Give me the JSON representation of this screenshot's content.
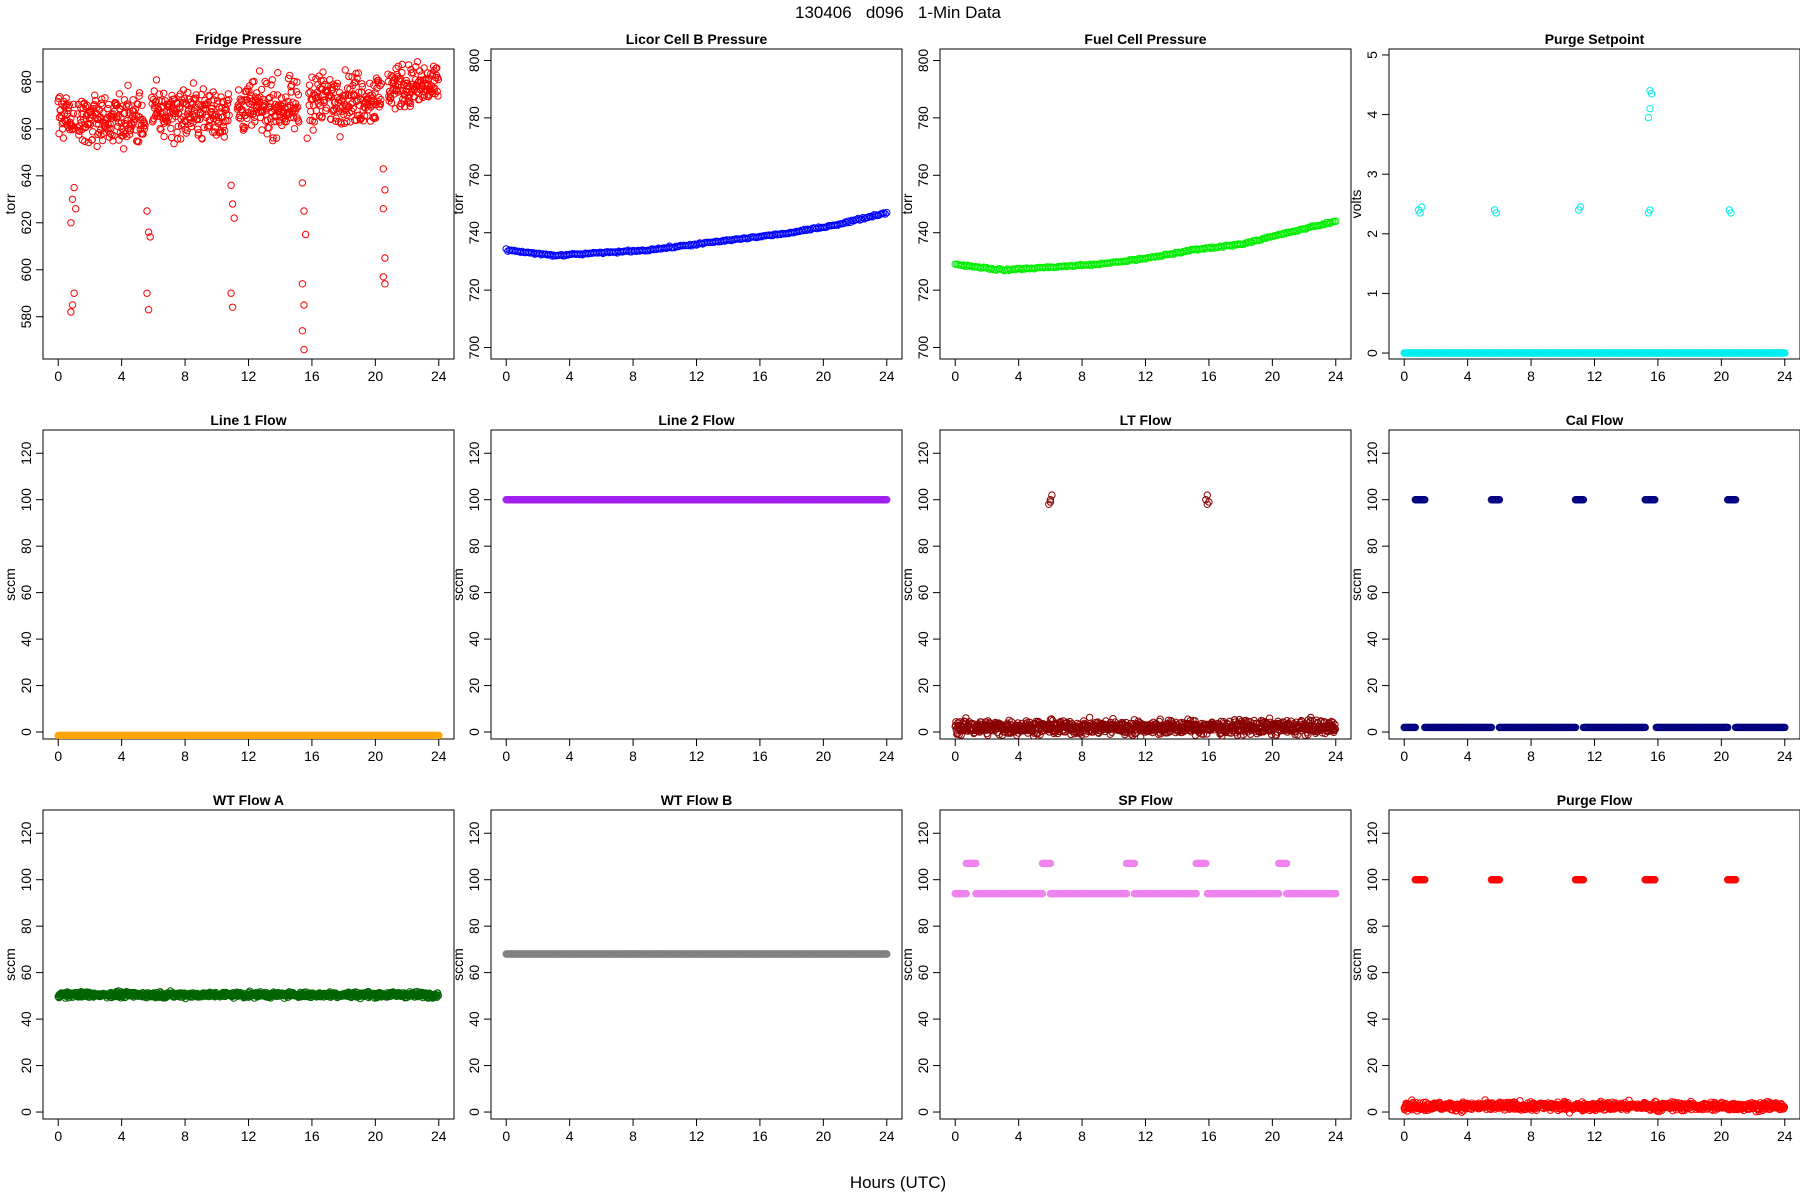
{
  "figure": {
    "title": "130406   d096   1-Min Data",
    "xlabel": "Hours (UTC)"
  },
  "chart_data": [
    {
      "type": "scatter",
      "title": "Fridge Pressure",
      "ylabel": "torr",
      "color": "#ff0000",
      "marker": "open-circle",
      "xlim": [
        0,
        24
      ],
      "ylim": [
        562,
        694
      ],
      "xticks": [
        0,
        4,
        8,
        12,
        16,
        20,
        24
      ],
      "yticks": [
        580,
        600,
        620,
        640,
        660,
        680
      ],
      "series": [
        {
          "kind": "band",
          "segments": [
            [
              0,
              1,
              666,
              8
            ],
            [
              1.2,
              5.5,
              664,
              9
            ],
            [
              5.9,
              10.8,
              667,
              9
            ],
            [
              11.3,
              15.2,
              669,
              9
            ],
            [
              15.8,
              20.4,
              673,
              9
            ],
            [
              20.8,
              24,
              678,
              8
            ]
          ]
        },
        {
          "kind": "clusters",
          "points": [
            [
              0.8,
              620
            ],
            [
              0.9,
              630
            ],
            [
              1.0,
              635
            ],
            [
              1.1,
              626
            ],
            [
              0.9,
              585
            ],
            [
              1.0,
              590
            ],
            [
              0.8,
              582
            ],
            [
              5.6,
              625
            ],
            [
              5.7,
              616
            ],
            [
              5.8,
              614
            ],
            [
              5.6,
              590
            ],
            [
              5.7,
              583
            ],
            [
              10.9,
              636
            ],
            [
              11.0,
              628
            ],
            [
              11.1,
              622
            ],
            [
              10.9,
              590
            ],
            [
              11.0,
              584
            ],
            [
              15.4,
              637
            ],
            [
              15.5,
              625
            ],
            [
              15.6,
              615
            ],
            [
              15.4,
              594
            ],
            [
              15.5,
              585
            ],
            [
              15.4,
              574
            ],
            [
              15.5,
              566
            ],
            [
              15.7,
              656
            ],
            [
              20.5,
              643
            ],
            [
              20.6,
              634
            ],
            [
              20.5,
              626
            ],
            [
              20.6,
              605
            ],
            [
              20.5,
              597
            ],
            [
              20.6,
              594
            ]
          ]
        }
      ]
    },
    {
      "type": "scatter",
      "title": "Licor Cell B Pressure",
      "ylabel": "torr",
      "color": "#0000ff",
      "marker": "open-circle",
      "xlim": [
        0,
        24
      ],
      "ylim": [
        696,
        804
      ],
      "xticks": [
        0,
        4,
        8,
        12,
        16,
        20,
        24
      ],
      "yticks": [
        700,
        720,
        740,
        760,
        780,
        800
      ],
      "series": [
        {
          "kind": "curve",
          "x": [
            0,
            3,
            6,
            9,
            12,
            15,
            18,
            21,
            24
          ],
          "y": [
            734,
            732,
            733,
            734,
            736,
            738,
            740,
            743,
            747
          ]
        }
      ]
    },
    {
      "type": "scatter",
      "title": "Fuel Cell Pressure",
      "ylabel": "torr",
      "color": "#00ee00",
      "marker": "open-circle",
      "xlim": [
        0,
        24
      ],
      "ylim": [
        696,
        804
      ],
      "xticks": [
        0,
        4,
        8,
        12,
        16,
        20,
        24
      ],
      "yticks": [
        700,
        720,
        740,
        760,
        780,
        800
      ],
      "series": [
        {
          "kind": "curve",
          "x": [
            0,
            3,
            6,
            9,
            12,
            15,
            18,
            21,
            24
          ],
          "y": [
            729,
            727,
            728,
            729,
            731,
            734,
            736,
            740,
            744
          ]
        }
      ]
    },
    {
      "type": "scatter",
      "title": "Purge Setpoint",
      "ylabel": "volts",
      "color": "#00eeee",
      "marker": "open-circle",
      "xlim": [
        0,
        24
      ],
      "ylim": [
        -0.1,
        5.1
      ],
      "xticks": [
        0,
        4,
        8,
        12,
        16,
        20,
        24
      ],
      "yticks": [
        0,
        1,
        2,
        3,
        4,
        5
      ],
      "series": [
        {
          "kind": "line",
          "segments": [
            [
              0,
              24,
              0
            ]
          ]
        },
        {
          "kind": "clusters",
          "points": [
            [
              0.9,
              2.4
            ],
            [
              1.0,
              2.35
            ],
            [
              1.1,
              2.45
            ],
            [
              5.7,
              2.4
            ],
            [
              5.8,
              2.35
            ],
            [
              11.0,
              2.4
            ],
            [
              11.1,
              2.45
            ],
            [
              15.4,
              2.35
            ],
            [
              15.5,
              2.4
            ],
            [
              15.4,
              3.95
            ],
            [
              15.5,
              4.1
            ],
            [
              15.6,
              4.35
            ],
            [
              15.5,
              4.4
            ],
            [
              20.5,
              2.4
            ],
            [
              20.6,
              2.35
            ]
          ]
        }
      ]
    },
    {
      "type": "scatter",
      "title": "Line 1 Flow",
      "ylabel": "sccm",
      "color": "#ffa500",
      "marker": "open-circle",
      "xlim": [
        0,
        24
      ],
      "ylim": [
        -3,
        130
      ],
      "xticks": [
        0,
        4,
        8,
        12,
        16,
        20,
        24
      ],
      "yticks": [
        0,
        20,
        40,
        60,
        80,
        100,
        120
      ],
      "series": [
        {
          "kind": "line",
          "segments": [
            [
              0,
              24,
              -1.5
            ]
          ]
        }
      ]
    },
    {
      "type": "scatter",
      "title": "Line 2 Flow",
      "ylabel": "sccm",
      "color": "#a020f0",
      "marker": "open-circle",
      "xlim": [
        0,
        24
      ],
      "ylim": [
        -3,
        130
      ],
      "xticks": [
        0,
        4,
        8,
        12,
        16,
        20,
        24
      ],
      "yticks": [
        0,
        20,
        40,
        60,
        80,
        100,
        120
      ],
      "series": [
        {
          "kind": "line",
          "segments": [
            [
              0,
              24,
              100
            ]
          ]
        }
      ]
    },
    {
      "type": "scatter",
      "title": "LT Flow",
      "ylabel": "sccm",
      "color": "#8b0000",
      "marker": "open-circle",
      "xlim": [
        0,
        24
      ],
      "ylim": [
        -3,
        130
      ],
      "xticks": [
        0,
        4,
        8,
        12,
        16,
        20,
        24
      ],
      "yticks": [
        0,
        20,
        40,
        60,
        80,
        100,
        120
      ],
      "series": [
        {
          "kind": "band",
          "segments": [
            [
              0,
              24,
              2,
              2.5
            ]
          ]
        },
        {
          "kind": "clusters",
          "points": [
            [
              5.9,
              98
            ],
            [
              6.0,
              100
            ],
            [
              6.1,
              102
            ],
            [
              6.0,
              99
            ],
            [
              15.8,
              100
            ],
            [
              15.9,
              102
            ],
            [
              16.0,
              99
            ],
            [
              15.9,
              98
            ]
          ]
        }
      ]
    },
    {
      "type": "scatter",
      "title": "Cal Flow",
      "ylabel": "sccm",
      "color": "#000080",
      "marker": "open-circle",
      "xlim": [
        0,
        24
      ],
      "ylim": [
        -3,
        130
      ],
      "xticks": [
        0,
        4,
        8,
        12,
        16,
        20,
        24
      ],
      "yticks": [
        0,
        20,
        40,
        60,
        80,
        100,
        120
      ],
      "series": [
        {
          "kind": "line",
          "segments": [
            [
              0,
              0.7,
              2
            ],
            [
              1.3,
              5.5,
              2
            ],
            [
              6.0,
              10.8,
              2
            ],
            [
              11.3,
              15.2,
              2
            ],
            [
              15.9,
              20.4,
              2
            ],
            [
              20.9,
              24,
              2
            ]
          ]
        },
        {
          "kind": "line",
          "segments": [
            [
              0.7,
              1.3,
              100
            ],
            [
              5.5,
              6.0,
              100
            ],
            [
              10.8,
              11.3,
              100
            ],
            [
              15.2,
              15.8,
              100
            ],
            [
              20.4,
              20.9,
              100
            ]
          ]
        }
      ]
    },
    {
      "type": "scatter",
      "title": "WT Flow A",
      "ylabel": "sccm",
      "color": "#006400",
      "marker": "open-circle",
      "xlim": [
        0,
        24
      ],
      "ylim": [
        -3,
        130
      ],
      "xticks": [
        0,
        4,
        8,
        12,
        16,
        20,
        24
      ],
      "yticks": [
        0,
        20,
        40,
        60,
        80,
        100,
        120
      ],
      "series": [
        {
          "kind": "band",
          "segments": [
            [
              0,
              24,
              50.5,
              1
            ]
          ]
        }
      ]
    },
    {
      "type": "scatter",
      "title": "WT Flow B",
      "ylabel": "sccm",
      "color": "#808080",
      "marker": "open-circle",
      "xlim": [
        0,
        24
      ],
      "ylim": [
        -3,
        130
      ],
      "xticks": [
        0,
        4,
        8,
        12,
        16,
        20,
        24
      ],
      "yticks": [
        0,
        20,
        40,
        60,
        80,
        100,
        120
      ],
      "series": [
        {
          "kind": "line",
          "segments": [
            [
              0,
              24,
              68
            ]
          ]
        }
      ]
    },
    {
      "type": "scatter",
      "title": "SP Flow",
      "ylabel": "sccm",
      "color": "#ee82ee",
      "marker": "open-circle",
      "xlim": [
        0,
        24
      ],
      "ylim": [
        -3,
        130
      ],
      "xticks": [
        0,
        4,
        8,
        12,
        16,
        20,
        24
      ],
      "yticks": [
        0,
        20,
        40,
        60,
        80,
        100,
        120
      ],
      "series": [
        {
          "kind": "line",
          "segments": [
            [
              0,
              0.7,
              94
            ],
            [
              1.3,
              5.5,
              94
            ],
            [
              6.0,
              10.8,
              94
            ],
            [
              11.3,
              15.2,
              94
            ],
            [
              15.9,
              20.4,
              94
            ],
            [
              20.9,
              24,
              94
            ]
          ]
        },
        {
          "kind": "line",
          "segments": [
            [
              0.7,
              1.3,
              107
            ],
            [
              5.5,
              6.0,
              107
            ],
            [
              10.8,
              11.3,
              107
            ],
            [
              15.2,
              15.8,
              107
            ],
            [
              20.4,
              20.9,
              107
            ]
          ]
        }
      ]
    },
    {
      "type": "scatter",
      "title": "Purge Flow",
      "ylabel": "sccm",
      "color": "#ff0000",
      "marker": "open-circle",
      "xlim": [
        0,
        24
      ],
      "ylim": [
        -3,
        130
      ],
      "xticks": [
        0,
        4,
        8,
        12,
        16,
        20,
        24
      ],
      "yticks": [
        0,
        20,
        40,
        60,
        80,
        100,
        120
      ],
      "series": [
        {
          "kind": "band",
          "segments": [
            [
              0,
              24,
              2.5,
              1.5
            ]
          ]
        },
        {
          "kind": "line",
          "segments": [
            [
              0.7,
              1.3,
              100
            ],
            [
              5.5,
              6.0,
              100
            ],
            [
              10.8,
              11.3,
              100
            ],
            [
              15.2,
              15.8,
              100
            ],
            [
              20.4,
              20.9,
              100
            ]
          ]
        }
      ]
    }
  ]
}
